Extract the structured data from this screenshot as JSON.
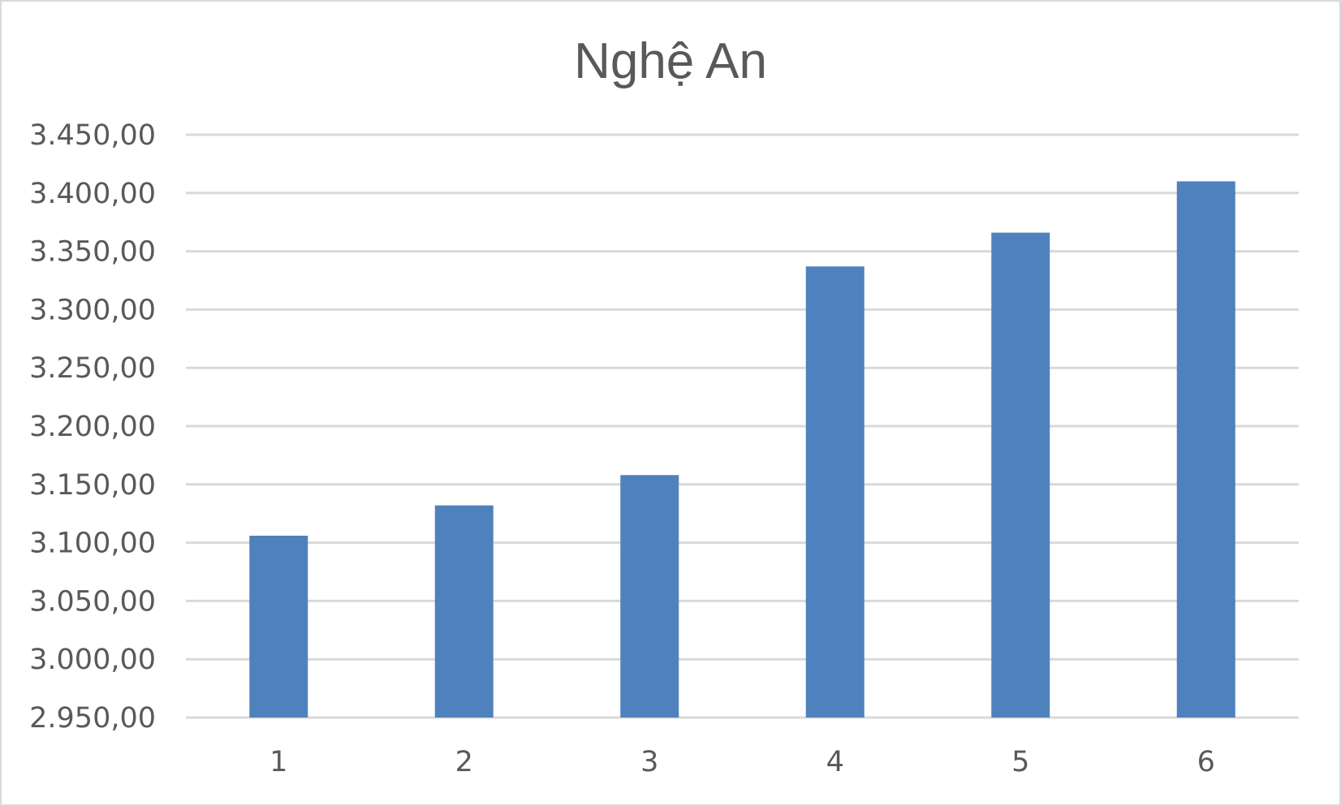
{
  "chart_data": {
    "type": "bar",
    "title": "Nghệ An",
    "categories": [
      "1",
      "2",
      "3",
      "4",
      "5",
      "6"
    ],
    "series": [
      {
        "values": [
          3106,
          3132,
          3158,
          3337,
          3366,
          3410
        ]
      }
    ],
    "ylim": [
      2950,
      3450
    ],
    "ytick_step": 50,
    "yticks": [
      "2.950,00",
      "3.000,00",
      "3.050,00",
      "3.100,00",
      "3.150,00",
      "3.200,00",
      "3.250,00",
      "3.300,00",
      "3.350,00",
      "3.400,00",
      "3.450,00"
    ],
    "xlabel": "",
    "ylabel": "",
    "grid": true,
    "legend": "none",
    "colors": {
      "bar": "#4f81bd",
      "grid": "#d9d9d9",
      "text": "#595959"
    }
  }
}
